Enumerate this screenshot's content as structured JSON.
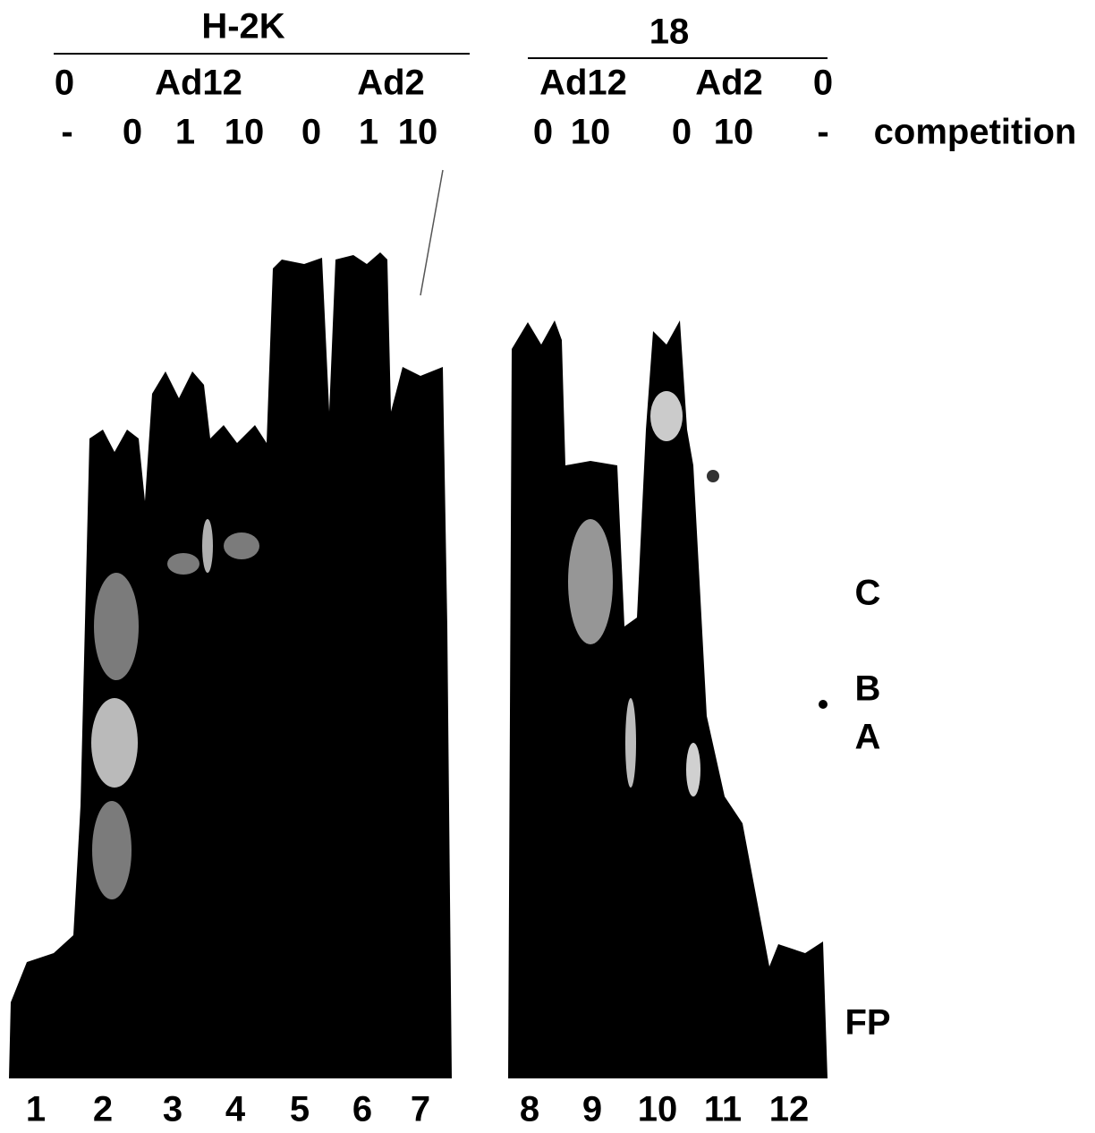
{
  "groups": [
    {
      "title": "H-2K",
      "labels": [
        "0",
        "Ad12",
        "Ad2"
      ]
    },
    {
      "title": "18",
      "labels": [
        "Ad12",
        "Ad2",
        "0"
      ]
    }
  ],
  "competition": {
    "label": "competition",
    "left": [
      "-",
      "0",
      "1",
      "10",
      "0",
      "1",
      "10"
    ],
    "right": [
      "0",
      "10",
      "0",
      "10",
      "-"
    ]
  },
  "bands": [
    "C",
    "B",
    "A",
    "FP"
  ],
  "lanes": [
    "1",
    "2",
    "3",
    "4",
    "5",
    "6",
    "7",
    "8",
    "9",
    "10",
    "11",
    "12"
  ]
}
